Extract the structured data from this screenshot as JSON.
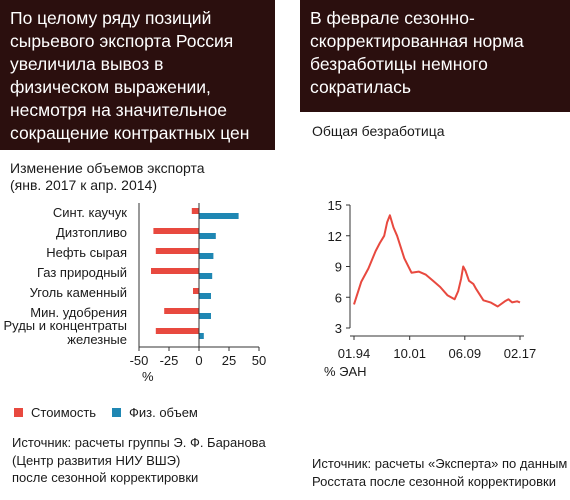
{
  "left_panel": {
    "headline": "По целому ряду позиций сырьевого экспорта Россия увеличила вывоз в физическом выражении, несмотря на значительное сокращение контрактных цен",
    "subtitle_line1": "Изменение объемов экспорта",
    "subtitle_line2": "(янв. 2017 к апр. 2014)",
    "legend": [
      {
        "label": "Стоимость",
        "color": "#e8493f"
      },
      {
        "label": "Физ. объем",
        "color": "#1f87b3"
      }
    ],
    "source_lines": [
      "Источник: расчеты группы Э. Ф. Баранова",
      "(Центр развития НИУ ВШЭ)",
      "после сезонной корректировки"
    ]
  },
  "right_panel": {
    "headline": "В феврале сезонно-скорректированная норма безработицы немного сократилась",
    "subtitle": "Общая безработица",
    "source_lines": [
      "Источник: расчеты «Эксперта» по данным",
      "Росстата после сезонной корректировки"
    ]
  },
  "chart_data": [
    {
      "type": "bar",
      "orientation": "horizontal",
      "categories": [
        "Синт. каучук",
        "Дизтопливо",
        "Нефть сырая",
        "Газ природный",
        "Уголь каменный",
        "Мин. удобрения",
        "Руды и концентраты железные"
      ],
      "series": [
        {
          "name": "Стоимость",
          "color": "#e8493f",
          "values": [
            -6,
            -38,
            -36,
            -40,
            -5,
            -29,
            -36
          ]
        },
        {
          "name": "Физ. объем",
          "color": "#1f87b3",
          "values": [
            33,
            14,
            12,
            11,
            10,
            10,
            4
          ]
        }
      ],
      "xlim": [
        -50,
        50
      ],
      "xticks": [
        -50,
        -25,
        0,
        25,
        50
      ],
      "xtick_labels": [
        "-50",
        "-25",
        "0",
        "25",
        "50"
      ],
      "xlabel": "%",
      "grid": false
    },
    {
      "type": "line",
      "series": [
        {
          "color": "#e8493f",
          "x": [
            1994.0,
            1995.0,
            1996.0,
            1997.0,
            1997.6,
            1998.2,
            1998.6,
            1999.0,
            1999.5,
            2000.0,
            2001.0,
            2002.0,
            2003.0,
            2004.0,
            2005.0,
            2006.0,
            2007.0,
            2008.0,
            2008.5,
            2008.9,
            2009.2,
            2009.5,
            2010.0,
            2010.6,
            2011.0,
            2012.0,
            2013.0,
            2014.0,
            2015.0,
            2015.5,
            2016.0,
            2016.7,
            2017.1
          ],
          "y": [
            5.3,
            7.5,
            8.8,
            10.5,
            11.3,
            12.0,
            13.3,
            14.0,
            12.8,
            12.0,
            9.8,
            8.4,
            8.5,
            8.2,
            7.6,
            7.0,
            6.2,
            5.8,
            6.6,
            7.8,
            9.0,
            8.6,
            7.6,
            7.3,
            6.8,
            5.7,
            5.5,
            5.1,
            5.6,
            5.8,
            5.5,
            5.6,
            5.5
          ]
        }
      ],
      "x_tick_labels": [
        "01.94",
        "10.01",
        "06.09",
        "02.17"
      ],
      "y_ticks": [
        3,
        6,
        9,
        12,
        15
      ],
      "ylim": [
        3,
        15
      ],
      "xlabel": "% ЭАН",
      "grid": false
    }
  ]
}
